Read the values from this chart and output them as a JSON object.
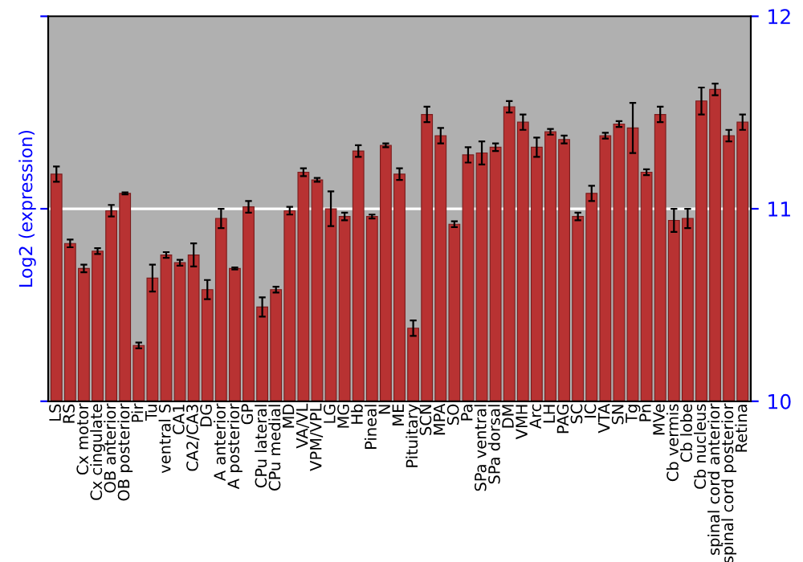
{
  "chart_data": {
    "type": "bar",
    "ylabel": "Log2 (expression)",
    "categories": [
      "LS",
      "RS",
      "Cx motor",
      "Cx cingulate",
      "OB anterior",
      "OB posterior",
      "Pir",
      "Tu",
      "ventral S",
      "CA1",
      "CA2/CA3",
      "DG",
      "A anterior",
      "A posterior",
      "GP",
      "CPu lateral",
      "CPu medial",
      "MD",
      "VA/VL",
      "VPM/VPL",
      "LG",
      "MG",
      "Hb",
      "Pineal",
      "N",
      "ME",
      "Pituitary",
      "SCN",
      "MPA",
      "SO",
      "Pa",
      "SPa ventral",
      "SPa dorsal",
      "DM",
      "VMH",
      "Arc",
      "LH",
      "PAG",
      "SC",
      "IC",
      "VTA",
      "SN",
      "Tg",
      "Pn",
      "MVe",
      "Cb vermis",
      "Cb lobe",
      "Cb nucleus",
      "spinal cord anterior",
      "spinal cord posterior",
      "Retina"
    ],
    "values": [
      11.18,
      10.82,
      10.69,
      10.78,
      10.99,
      11.08,
      10.29,
      10.64,
      10.76,
      10.72,
      10.76,
      10.58,
      10.95,
      10.69,
      11.01,
      10.49,
      10.58,
      10.99,
      11.19,
      11.15,
      11.0,
      10.96,
      11.3,
      10.96,
      11.33,
      11.18,
      10.38,
      11.49,
      11.38,
      10.92,
      11.28,
      11.29,
      11.32,
      11.53,
      11.45,
      11.32,
      11.4,
      11.36,
      10.96,
      11.08,
      11.38,
      11.44,
      11.42,
      11.19,
      11.49,
      10.94,
      10.95,
      11.56,
      11.62,
      11.38,
      11.45
    ],
    "errors": [
      0.04,
      0.02,
      0.02,
      0.015,
      0.03,
      0.005,
      0.015,
      0.07,
      0.015,
      0.015,
      0.06,
      0.05,
      0.05,
      0.005,
      0.03,
      0.05,
      0.015,
      0.02,
      0.02,
      0.01,
      0.09,
      0.02,
      0.03,
      0.01,
      0.01,
      0.03,
      0.04,
      0.04,
      0.04,
      0.015,
      0.04,
      0.06,
      0.02,
      0.03,
      0.04,
      0.05,
      0.015,
      0.02,
      0.02,
      0.04,
      0.015,
      0.015,
      0.13,
      0.015,
      0.04,
      0.06,
      0.05,
      0.07,
      0.03,
      0.03,
      0.04
    ],
    "color": "#b83232",
    "ylim": [
      10,
      12
    ],
    "yticks": [
      10,
      11,
      12
    ],
    "grid": "y"
  }
}
